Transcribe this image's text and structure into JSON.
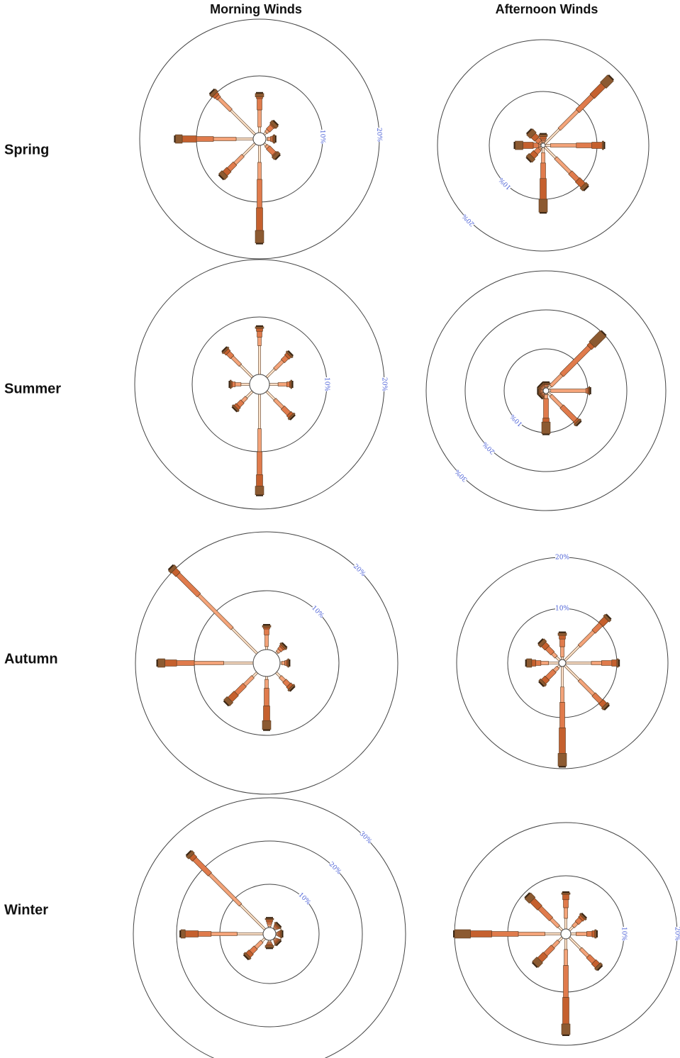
{
  "columns": [
    "Morning Winds",
    "Afternoon Winds"
  ],
  "rows": [
    "Spring",
    "Summer",
    "Autumn",
    "Winter"
  ],
  "colors": {
    "calm": "#fde2c9",
    "light": "#f4a47a",
    "moderate": "#e07b4c",
    "strong": "#c5602e",
    "very_strong": "#8c5a31",
    "ring": "#444444",
    "ring_label": "#4a5fd6"
  },
  "chart_data": [
    {
      "type": "wind-rose",
      "season": "Spring",
      "time": "Morning Winds",
      "directions": [
        "N",
        "NE",
        "E",
        "SE",
        "S",
        "SW",
        "W",
        "NW"
      ],
      "ring_values": [
        10,
        20
      ],
      "ring_labels": [
        "10%",
        "20%"
      ],
      "ring_label_angle": 88,
      "series": [
        {
          "values": [
            1,
            0.5,
            0.3,
            0.5,
            3,
            3,
            3,
            6
          ]
        },
        {
          "values": [
            3,
            0.5,
            0.5,
            0.5,
            3,
            2,
            4,
            3
          ]
        },
        {
          "values": [
            2,
            1,
            0.3,
            1.5,
            5,
            1.5,
            3,
            0.5
          ]
        },
        {
          "values": [
            0.3,
            0.2,
            0.2,
            0.2,
            4,
            1,
            2.5,
            0.5
          ]
        },
        {
          "values": [
            0.6,
            0.6,
            0.3,
            0.6,
            2.2,
            0.8,
            1.2,
            0.6
          ]
        }
      ]
    },
    {
      "type": "wind-rose",
      "season": "Spring",
      "time": "Afternoon Winds",
      "directions": [
        "N",
        "NE",
        "E",
        "SE",
        "S",
        "SW",
        "W",
        "NW"
      ],
      "ring_values": [
        10,
        20
      ],
      "ring_labels": [
        "10%",
        "20%"
      ],
      "ring_label_angle": 225,
      "series": [
        {
          "values": [
            0.2,
            4,
            1,
            3,
            1,
            0.3,
            0.2,
            0.2
          ]
        },
        {
          "values": [
            0.3,
            5,
            5,
            4,
            2,
            0.3,
            0.3,
            0.3
          ]
        },
        {
          "values": [
            0.3,
            4,
            3,
            2,
            3,
            1,
            1,
            0.8
          ]
        },
        {
          "values": [
            0.5,
            3,
            2,
            1.5,
            4,
            1,
            2,
            1
          ]
        },
        {
          "values": [
            0.4,
            2,
            0.3,
            0.7,
            2.5,
            0.8,
            1.5,
            1
          ]
        }
      ]
    },
    {
      "type": "wind-rose",
      "season": "Summer",
      "time": "Morning Winds",
      "directions": [
        "N",
        "NE",
        "E",
        "SE",
        "S",
        "SW",
        "W",
        "NW"
      ],
      "ring_values": [
        10,
        20
      ],
      "ring_labels": [
        "10%",
        "20%"
      ],
      "ring_label_angle": 90,
      "series": [
        {
          "values": [
            5,
            2,
            1.5,
            2,
            6,
            1.5,
            1.5,
            3
          ]
        },
        {
          "values": [
            1.5,
            2,
            1.5,
            2,
            4,
            1,
            1,
            2
          ]
        },
        {
          "values": [
            1,
            1,
            0.5,
            1.5,
            4,
            1,
            0.5,
            1
          ]
        },
        {
          "values": [
            0.5,
            0.5,
            0.2,
            0.5,
            2,
            0.5,
            0.2,
            0.5
          ]
        },
        {
          "values": [
            0.3,
            0.3,
            0.2,
            0.3,
            1.5,
            0.3,
            0.2,
            0.3
          ]
        }
      ]
    },
    {
      "type": "wind-rose",
      "season": "Summer",
      "time": "Afternoon Winds",
      "directions": [
        "N",
        "NE",
        "E",
        "SE",
        "S",
        "SW",
        "W",
        "NW"
      ],
      "ring_values": [
        10,
        20,
        30
      ],
      "ring_labels": [
        "10%",
        "20%",
        "30%"
      ],
      "ring_label_angle": 225,
      "series": [
        {
          "values": [
            0.2,
            1,
            0.5,
            1,
            0.3,
            0.1,
            0.1,
            0.1
          ]
        },
        {
          "values": [
            0.3,
            4,
            9,
            4,
            1,
            0.3,
            0.3,
            0.3
          ]
        },
        {
          "values": [
            0.3,
            10,
            0.5,
            5,
            5,
            0.3,
            0.3,
            0.3
          ]
        },
        {
          "values": [
            0.2,
            1,
            0.3,
            0.5,
            1,
            0.2,
            0.2,
            0.2
          ]
        },
        {
          "values": [
            0.3,
            4,
            0.2,
            0.5,
            3,
            0.3,
            0.3,
            0.3
          ]
        }
      ]
    },
    {
      "type": "wind-rose",
      "season": "Autumn",
      "time": "Morning Winds",
      "directions": [
        "N",
        "NE",
        "E",
        "SE",
        "S",
        "SW",
        "W",
        "NW"
      ],
      "ring_values": [
        10,
        20
      ],
      "ring_labels": [
        "10%",
        "20%"
      ],
      "ring_label_angle": 45,
      "series": [
        {
          "values": [
            0.5,
            0.3,
            0.3,
            1,
            0.5,
            1,
            5,
            6
          ]
        },
        {
          "values": [
            2,
            0.5,
            0.5,
            1,
            1.5,
            2,
            5,
            8
          ]
        },
        {
          "values": [
            1,
            0.5,
            0.3,
            1,
            3,
            2,
            3,
            5
          ]
        },
        {
          "values": [
            0.3,
            0.3,
            0.2,
            0.5,
            2.5,
            1.5,
            2,
            1
          ]
        },
        {
          "values": [
            0.3,
            0.3,
            0.2,
            0.3,
            1.5,
            0.8,
            1.2,
            0.6
          ]
        }
      ]
    },
    {
      "type": "wind-rose",
      "season": "Autumn",
      "time": "Afternoon Winds",
      "directions": [
        "N",
        "NE",
        "E",
        "SE",
        "S",
        "SW",
        "W",
        "NW"
      ],
      "ring_values": [
        10,
        20
      ],
      "ring_labels": [
        "10%",
        "20%"
      ],
      "ring_label_angle": 0,
      "series": [
        {
          "values": [
            0.5,
            4,
            5,
            4,
            4,
            0.5,
            2,
            1
          ]
        },
        {
          "values": [
            2,
            4,
            2,
            4,
            3,
            1,
            1.5,
            1
          ]
        },
        {
          "values": [
            1.5,
            2,
            2,
            2,
            5,
            2,
            1,
            1.5
          ]
        },
        {
          "values": [
            0.7,
            1.5,
            1,
            1,
            5,
            1,
            0.8,
            1
          ]
        },
        {
          "values": [
            0.5,
            0.5,
            0.3,
            0.5,
            2.5,
            0.5,
            1,
            0.7
          ]
        }
      ]
    },
    {
      "type": "wind-rose",
      "season": "Winter",
      "time": "Morning Winds",
      "directions": [
        "N",
        "NE",
        "E",
        "SE",
        "S",
        "SW",
        "W",
        "NW"
      ],
      "ring_values": [
        10,
        20,
        30
      ],
      "ring_labels": [
        "10%",
        "20%",
        "30%"
      ],
      "ring_label_angle": 45,
      "series": [
        {
          "values": [
            0.3,
            0.2,
            0.2,
            0.2,
            0.3,
            1,
            6,
            8
          ]
        },
        {
          "values": [
            0.5,
            0.3,
            0.3,
            0.3,
            0.3,
            2,
            6,
            10
          ]
        },
        {
          "values": [
            0.5,
            0.3,
            0.3,
            0.3,
            0.3,
            1.5,
            3,
            5
          ]
        },
        {
          "values": [
            0.5,
            0.3,
            0.3,
            0.3,
            0.3,
            1,
            3,
            1
          ]
        },
        {
          "values": [
            0.3,
            0.3,
            0.3,
            0.3,
            0.5,
            0.5,
            1,
            0.8
          ]
        }
      ]
    },
    {
      "type": "wind-rose",
      "season": "Winter",
      "time": "Afternoon Winds",
      "directions": [
        "N",
        "NE",
        "E",
        "SE",
        "S",
        "SW",
        "W",
        "NW"
      ],
      "ring_values": [
        10,
        20
      ],
      "ring_labels": [
        "10%",
        "20%"
      ],
      "ring_label_angle": 90,
      "series": [
        {
          "values": [
            2,
            1,
            1,
            3,
            2,
            1,
            3,
            1
          ]
        },
        {
          "values": [
            2,
            1,
            2,
            2,
            3,
            1.5,
            5,
            2
          ]
        },
        {
          "values": [
            1.5,
            1,
            1,
            1.5,
            6,
            2,
            5,
            3
          ]
        },
        {
          "values": [
            1,
            0.5,
            0.5,
            1,
            5,
            1.5,
            4,
            2
          ]
        },
        {
          "values": [
            0.3,
            0.3,
            0.3,
            0.5,
            2,
            1.2,
            3,
            1.2
          ]
        }
      ]
    }
  ]
}
